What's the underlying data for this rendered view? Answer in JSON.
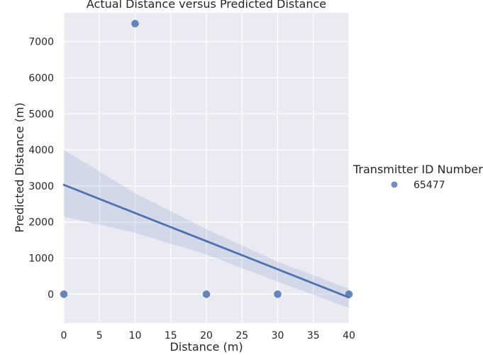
{
  "chart_data": {
    "type": "scatter",
    "title": "Actual Distance versus Predicted Distance",
    "xlabel": "Distance (m)",
    "ylabel": "Predicted Distance (m)",
    "xlim": [
      0,
      40
    ],
    "ylim": [
      -800,
      7800
    ],
    "xticks": [
      0,
      5,
      10,
      15,
      20,
      25,
      30,
      35,
      40
    ],
    "yticks": [
      0,
      1000,
      2000,
      3000,
      4000,
      5000,
      6000,
      7000
    ],
    "grid": true,
    "legend": {
      "title": "Transmitter ID Number",
      "position": "right"
    },
    "series": [
      {
        "name": "65477",
        "color": "#4c72b0",
        "points": [
          {
            "x": 0,
            "y": 0
          },
          {
            "x": 10,
            "y": 7500
          },
          {
            "x": 20,
            "y": 0
          },
          {
            "x": 30,
            "y": 0
          },
          {
            "x": 40,
            "y": 0
          }
        ],
        "regression": {
          "line": [
            {
              "x": 0,
              "y": 3030
            },
            {
              "x": 40,
              "y": -90
            }
          ],
          "ci_upper": [
            {
              "x": 0,
              "y": 4000
            },
            {
              "x": 10,
              "y": 2800
            },
            {
              "x": 20,
              "y": 1800
            },
            {
              "x": 30,
              "y": 900
            },
            {
              "x": 40,
              "y": 150
            }
          ],
          "ci_lower": [
            {
              "x": 0,
              "y": 2150
            },
            {
              "x": 10,
              "y": 1700
            },
            {
              "x": 20,
              "y": 1100
            },
            {
              "x": 30,
              "y": 350
            },
            {
              "x": 40,
              "y": -380
            }
          ]
        }
      }
    ]
  }
}
